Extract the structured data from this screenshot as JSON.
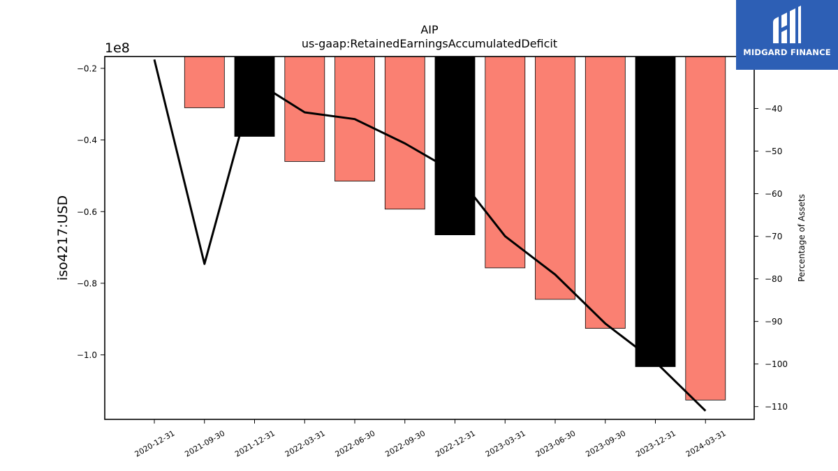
{
  "brand": {
    "name": "MIDGARD FINANCE",
    "logo_icon": "midgard-logo-icon",
    "colors": {
      "background": "#2d5fb5",
      "text": "#ffffff"
    }
  },
  "chart_data": {
    "type": "bar",
    "title": "AIP",
    "subtitle": "us-gaap:RetainedEarningsAccumulatedDeficit",
    "ylabel": "iso4217:USD",
    "y2label": "Percentage of Assets",
    "y_offset_text": "1e8",
    "categories": [
      "2020-12-31",
      "2021-09-30",
      "2021-12-31",
      "2022-03-31",
      "2022-06-30",
      "2022-09-30",
      "2022-12-31",
      "2023-03-31",
      "2023-06-30",
      "2023-09-30",
      "2023-12-31",
      "2024-03-31"
    ],
    "series": [
      {
        "name": "",
        "kind": "bar",
        "axis": "left",
        "values": [
          null,
          -31000000,
          -39000000,
          -46000000,
          -51500000,
          -59300000,
          -66500000,
          -75700000,
          -84500000,
          -92600000,
          -103300000,
          -112600000
        ],
        "colors": [
          "#fa8072",
          "#fa8072",
          "#000000",
          "#fa8072",
          "#fa8072",
          "#fa8072",
          "#000000",
          "#fa8072",
          "#fa8072",
          "#fa8072",
          "#000000",
          "#fa8072"
        ]
      },
      {
        "name": "",
        "kind": "line",
        "axis": "right",
        "color": "#000000",
        "values": [
          -28.5,
          -76.5,
          -33.5,
          -40.9,
          -42.5,
          -48.2,
          -55.0,
          -70.0,
          -79.0,
          -90.5,
          -99.5,
          -111.0
        ]
      }
    ],
    "ylim": [
      -118000000,
      -16700000
    ],
    "yticks": [
      -20000000,
      -40000000,
      -60000000,
      -80000000,
      -100000000
    ],
    "ytick_labels": [
      "−0.2",
      "−0.4",
      "−0.6",
      "−0.8",
      "−1.0"
    ],
    "y2lim": [
      -113.0,
      -27.8
    ],
    "y2ticks": [
      -40,
      -50,
      -60,
      -70,
      -80,
      -90,
      -100,
      -110
    ],
    "y2tick_labels": [
      "−40",
      "−50",
      "−60",
      "−70",
      "−80",
      "−90",
      "−100",
      "−110"
    ],
    "grid": false,
    "legend": "none"
  }
}
